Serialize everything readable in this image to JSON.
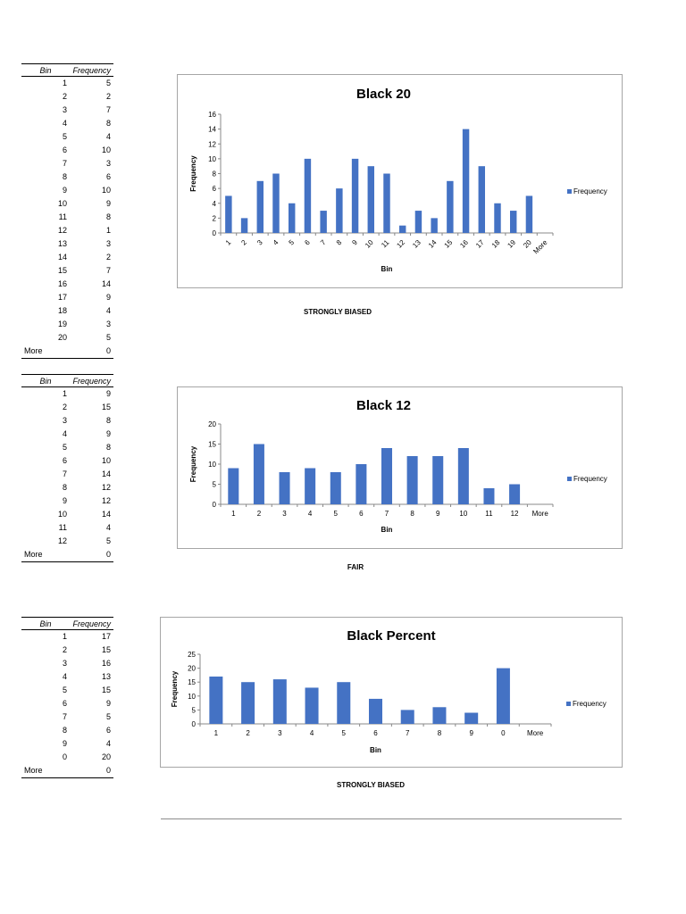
{
  "tables": [
    {
      "headers": {
        "bin": "Bin",
        "frequency": "Frequency"
      },
      "rows": [
        [
          "1",
          "5"
        ],
        [
          "2",
          "2"
        ],
        [
          "3",
          "7"
        ],
        [
          "4",
          "8"
        ],
        [
          "5",
          "4"
        ],
        [
          "6",
          "10"
        ],
        [
          "7",
          "3"
        ],
        [
          "8",
          "6"
        ],
        [
          "9",
          "10"
        ],
        [
          "10",
          "9"
        ],
        [
          "11",
          "8"
        ],
        [
          "12",
          "1"
        ],
        [
          "13",
          "3"
        ],
        [
          "14",
          "2"
        ],
        [
          "15",
          "7"
        ],
        [
          "16",
          "14"
        ],
        [
          "17",
          "9"
        ],
        [
          "18",
          "4"
        ],
        [
          "19",
          "3"
        ],
        [
          "20",
          "5"
        ],
        [
          "More",
          "0"
        ]
      ]
    },
    {
      "headers": {
        "bin": "Bin",
        "frequency": "Frequency"
      },
      "rows": [
        [
          "1",
          "9"
        ],
        [
          "2",
          "15"
        ],
        [
          "3",
          "8"
        ],
        [
          "4",
          "9"
        ],
        [
          "5",
          "8"
        ],
        [
          "6",
          "10"
        ],
        [
          "7",
          "14"
        ],
        [
          "8",
          "12"
        ],
        [
          "9",
          "12"
        ],
        [
          "10",
          "14"
        ],
        [
          "11",
          "4"
        ],
        [
          "12",
          "5"
        ],
        [
          "More",
          "0"
        ]
      ]
    },
    {
      "headers": {
        "bin": "Bin",
        "frequency": "Frequency"
      },
      "rows": [
        [
          "1",
          "17"
        ],
        [
          "2",
          "15"
        ],
        [
          "3",
          "16"
        ],
        [
          "4",
          "13"
        ],
        [
          "5",
          "15"
        ],
        [
          "6",
          "9"
        ],
        [
          "7",
          "5"
        ],
        [
          "8",
          "6"
        ],
        [
          "9",
          "4"
        ],
        [
          "0",
          "20"
        ],
        [
          "More",
          "0"
        ]
      ]
    }
  ],
  "verdicts": [
    "STRONGLY BIASED",
    "FAIR",
    "STRONGLY BIASED"
  ],
  "chart_data": [
    {
      "type": "bar",
      "title": "Black 20",
      "xlabel": "Bin",
      "ylabel": "Frequency",
      "categories": [
        "1",
        "2",
        "3",
        "4",
        "5",
        "6",
        "7",
        "8",
        "9",
        "10",
        "11",
        "12",
        "13",
        "14",
        "15",
        "16",
        "17",
        "18",
        "19",
        "20",
        "More"
      ],
      "series": [
        {
          "name": "Frequency",
          "values": [
            5,
            2,
            7,
            8,
            4,
            10,
            3,
            6,
            10,
            9,
            8,
            1,
            3,
            2,
            7,
            14,
            9,
            4,
            3,
            5,
            0
          ]
        }
      ],
      "ylim": [
        0,
        16
      ],
      "yticks": [
        0,
        2,
        4,
        6,
        8,
        10,
        12,
        14,
        16
      ],
      "rotated_xticks": true,
      "grid": false,
      "legend": "right",
      "color": "#4472c4"
    },
    {
      "type": "bar",
      "title": "Black 12",
      "xlabel": "Bin",
      "ylabel": "Frequency",
      "categories": [
        "1",
        "2",
        "3",
        "4",
        "5",
        "6",
        "7",
        "8",
        "9",
        "10",
        "11",
        "12",
        "More"
      ],
      "series": [
        {
          "name": "Frequency",
          "values": [
            9,
            15,
            8,
            9,
            8,
            10,
            14,
            12,
            12,
            14,
            4,
            5,
            0
          ]
        }
      ],
      "ylim": [
        0,
        20
      ],
      "yticks": [
        0,
        5,
        10,
        15,
        20
      ],
      "rotated_xticks": false,
      "grid": false,
      "legend": "right",
      "color": "#4472c4"
    },
    {
      "type": "bar",
      "title": "Black Percent",
      "xlabel": "Bin",
      "ylabel": "Frequency",
      "categories": [
        "1",
        "2",
        "3",
        "4",
        "5",
        "6",
        "7",
        "8",
        "9",
        "0",
        "More"
      ],
      "series": [
        {
          "name": "Frequency",
          "values": [
            17,
            15,
            16,
            13,
            15,
            9,
            5,
            6,
            4,
            20,
            0
          ]
        }
      ],
      "ylim": [
        0,
        25
      ],
      "yticks": [
        0,
        5,
        10,
        15,
        20,
        25
      ],
      "rotated_xticks": false,
      "grid": false,
      "legend": "right",
      "color": "#4472c4"
    }
  ]
}
